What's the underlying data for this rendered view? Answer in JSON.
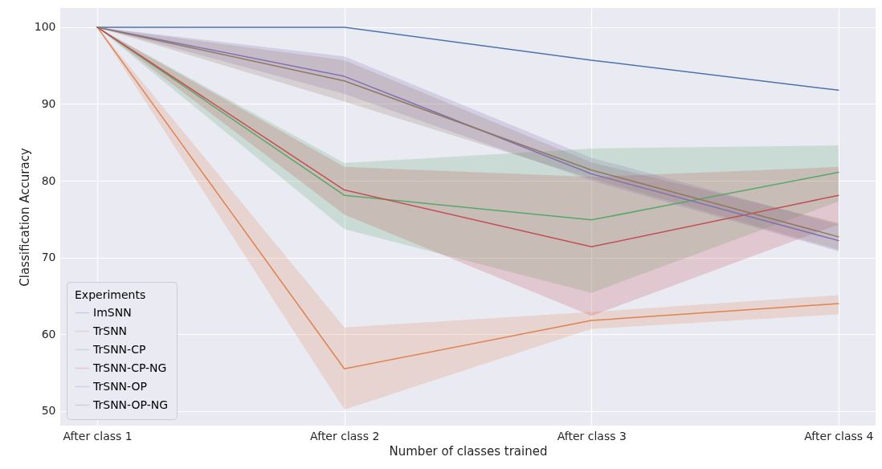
{
  "chart_data": {
    "type": "line",
    "xlabel": "Number of classes trained",
    "ylabel": "Classification Accuracy",
    "legend_title": "Experiments",
    "legend": "bottom left",
    "grid": true,
    "categories": [
      "After class 1",
      "After class 2",
      "After class 3",
      "After class 4"
    ],
    "ylim": [
      48.1,
      102.5
    ],
    "yticks": [
      50,
      60,
      70,
      80,
      90,
      100
    ],
    "series": [
      {
        "name": "ImSNN",
        "color": "#4c72b0",
        "values": [
          100,
          100,
          95.7,
          91.8
        ]
      },
      {
        "name": "TrSNN",
        "color": "#dd8452",
        "values": [
          100,
          55.5,
          61.8,
          64.0
        ],
        "lower": [
          100,
          50.2,
          60.7,
          62.6
        ],
        "upper": [
          100,
          60.9,
          62.9,
          65.1
        ]
      },
      {
        "name": "TrSNN-CP",
        "color": "#55a868",
        "values": [
          100,
          78.1,
          74.9,
          81.1
        ],
        "lower": [
          100,
          73.7,
          65.4,
          77.3
        ],
        "upper": [
          100,
          82.3,
          84.2,
          84.6
        ]
      },
      {
        "name": "TrSNN-CP-NG",
        "color": "#c44e52",
        "values": [
          100,
          78.8,
          71.4,
          78.1
        ],
        "lower": [
          100,
          75.6,
          62.4,
          74.3
        ],
        "upper": [
          100,
          81.8,
          80.5,
          81.8
        ]
      },
      {
        "name": "TrSNN-OP",
        "color": "#8172b3",
        "values": [
          100,
          93.6,
          80.9,
          72.2
        ],
        "lower": [
          100,
          91.3,
          80.0,
          70.8
        ],
        "upper": [
          100,
          96.2,
          83.0,
          74.3
        ]
      },
      {
        "name": "TrSNN-OP-NG",
        "color": "#937860",
        "values": [
          100,
          93.0,
          81.4,
          72.7
        ],
        "lower": [
          100,
          90.3,
          80.3,
          71.0
        ],
        "upper": [
          100,
          95.7,
          82.4,
          74.5
        ]
      }
    ]
  }
}
